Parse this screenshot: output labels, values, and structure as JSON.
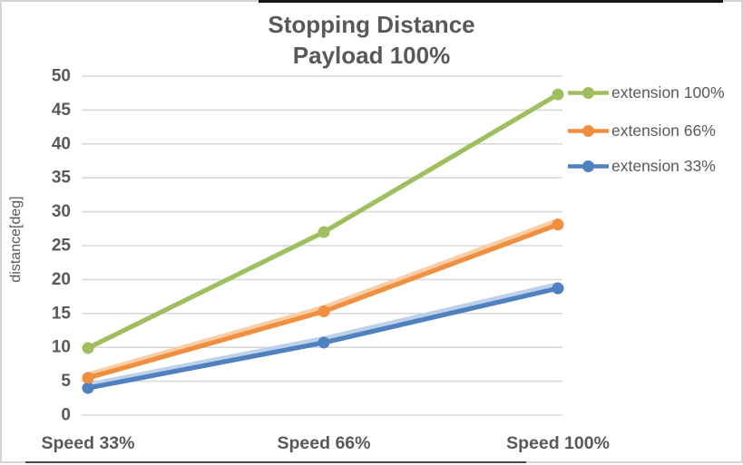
{
  "frame": {
    "background": "#ffffff",
    "border_color": "#d4d4d4",
    "top_edge_color": "#161616",
    "bottom_edge_color": "#4a4a4a"
  },
  "chart_data": {
    "type": "line",
    "title": "Stopping Distance",
    "subtitle": "Payload 100%",
    "xlabel": "",
    "ylabel": "distance[deg]",
    "categories": [
      "Speed 33%",
      "Speed 66%",
      "Speed 100%"
    ],
    "series": [
      {
        "name": "extension 100%",
        "color": "#9FBF5F",
        "values": [
          9.9,
          27.0,
          47.3
        ]
      },
      {
        "name": "extension 66%",
        "color": "#EF8F3F",
        "values": [
          5.5,
          15.3,
          28.1
        ],
        "halo_color": "#F9CEA6",
        "halo_values": [
          6.0,
          15.9,
          28.7
        ]
      },
      {
        "name": "extension 33%",
        "color": "#4E81BD",
        "values": [
          4.0,
          10.7,
          18.7
        ],
        "halo_color": "#BDD1E8",
        "halo_values": [
          4.5,
          11.3,
          19.3
        ]
      }
    ],
    "ylim": [
      0,
      50
    ],
    "ytick_step": 5,
    "yticks": [
      "0",
      "5",
      "10",
      "15",
      "20",
      "25",
      "30",
      "35",
      "40",
      "45",
      "50"
    ],
    "grid": true,
    "gridline_color": "#D9D9D9",
    "text_color": "#595959",
    "legend_position": "right",
    "marker": "circle"
  }
}
